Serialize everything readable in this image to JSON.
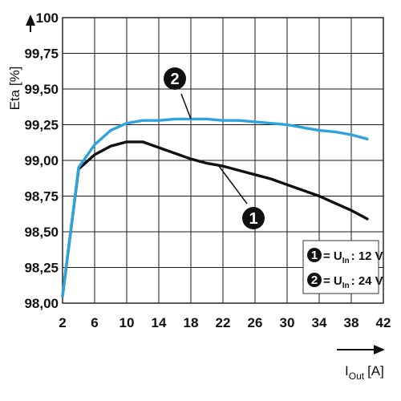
{
  "chart_data": {
    "type": "line",
    "x_ticks": [
      "2",
      "6",
      "10",
      "14",
      "18",
      "22",
      "26",
      "30",
      "34",
      "38",
      "42"
    ],
    "y_ticks": [
      "98,00",
      "98,25",
      "98,50",
      "98,75",
      "99,00",
      "99,25",
      "99,50",
      "99,75",
      "100"
    ],
    "xlim": [
      2,
      42
    ],
    "ylim": [
      98.0,
      100.0
    ],
    "grid": true,
    "ylabel": {
      "main": "Eta",
      "unit": "[%]"
    },
    "xlabel": {
      "main": "I",
      "sub": "Out",
      "unit": "[A]"
    },
    "series": [
      {
        "id": "1",
        "color": "#111111",
        "x": [
          2,
          4,
          6,
          8,
          10,
          12,
          14,
          16,
          18,
          20,
          22,
          24,
          26,
          28,
          30,
          32,
          34,
          36,
          38,
          40
        ],
        "y": [
          98.05,
          98.94,
          99.04,
          99.1,
          99.13,
          99.13,
          99.09,
          99.05,
          99.01,
          98.98,
          98.96,
          98.93,
          98.9,
          98.87,
          98.83,
          98.79,
          98.75,
          98.7,
          98.65,
          98.59
        ]
      },
      {
        "id": "2",
        "color": "#2ea3dc",
        "x": [
          2,
          4,
          6,
          8,
          10,
          12,
          14,
          16,
          18,
          20,
          22,
          24,
          26,
          28,
          30,
          32,
          34,
          36,
          38,
          40
        ],
        "y": [
          98.05,
          98.95,
          99.11,
          99.21,
          99.26,
          99.28,
          99.28,
          99.29,
          99.29,
          99.29,
          99.28,
          99.28,
          99.27,
          99.26,
          99.25,
          99.23,
          99.21,
          99.2,
          99.18,
          99.15
        ]
      }
    ],
    "callouts": [
      {
        "id": "2",
        "label": "2",
        "anchor_x": 18,
        "anchor_y": 99.29
      },
      {
        "id": "1",
        "label": "1",
        "anchor_x": 21.5,
        "anchor_y": 98.96
      }
    ],
    "legend": {
      "position": "bottom-right",
      "items": [
        {
          "badge": "1",
          "prefix": "= U",
          "sub": "In",
          "suffix": ": 12 V"
        },
        {
          "badge": "2",
          "prefix": "= U",
          "sub": "In",
          "suffix": ": 24 V"
        }
      ]
    }
  }
}
